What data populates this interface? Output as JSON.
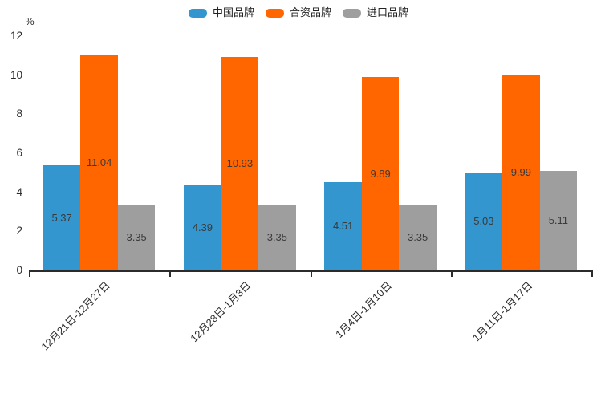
{
  "chart_data": {
    "type": "bar",
    "title": "",
    "unit_label": "%",
    "categories": [
      "12月21日-12月27日",
      "12月28日-1月3日",
      "1月4日-1月10日",
      "1月11日-1月17日"
    ],
    "series": [
      {
        "name": "中国品牌",
        "color": "#3496CE",
        "values": [
          5.37,
          4.39,
          4.51,
          5.03
        ]
      },
      {
        "name": "合资品牌",
        "color": "#FF6600",
        "values": [
          11.04,
          10.93,
          9.89,
          9.99
        ]
      },
      {
        "name": "进口品牌",
        "color": "#9E9E9E",
        "values": [
          3.35,
          3.35,
          3.35,
          5.11
        ]
      }
    ],
    "ylim": [
      0,
      12
    ],
    "yticks": [
      0,
      2,
      4,
      6,
      8,
      10,
      12
    ],
    "legend_position": "top-center",
    "grid": false,
    "value_labels": "inside-center",
    "xlabel_rotation_deg": 45
  },
  "colors": {
    "axis": "#2b2b2b",
    "tick_text": "#2b2b2b",
    "value_text": "#3a3a3a",
    "legend_text": "#222222",
    "background": "#ffffff"
  }
}
